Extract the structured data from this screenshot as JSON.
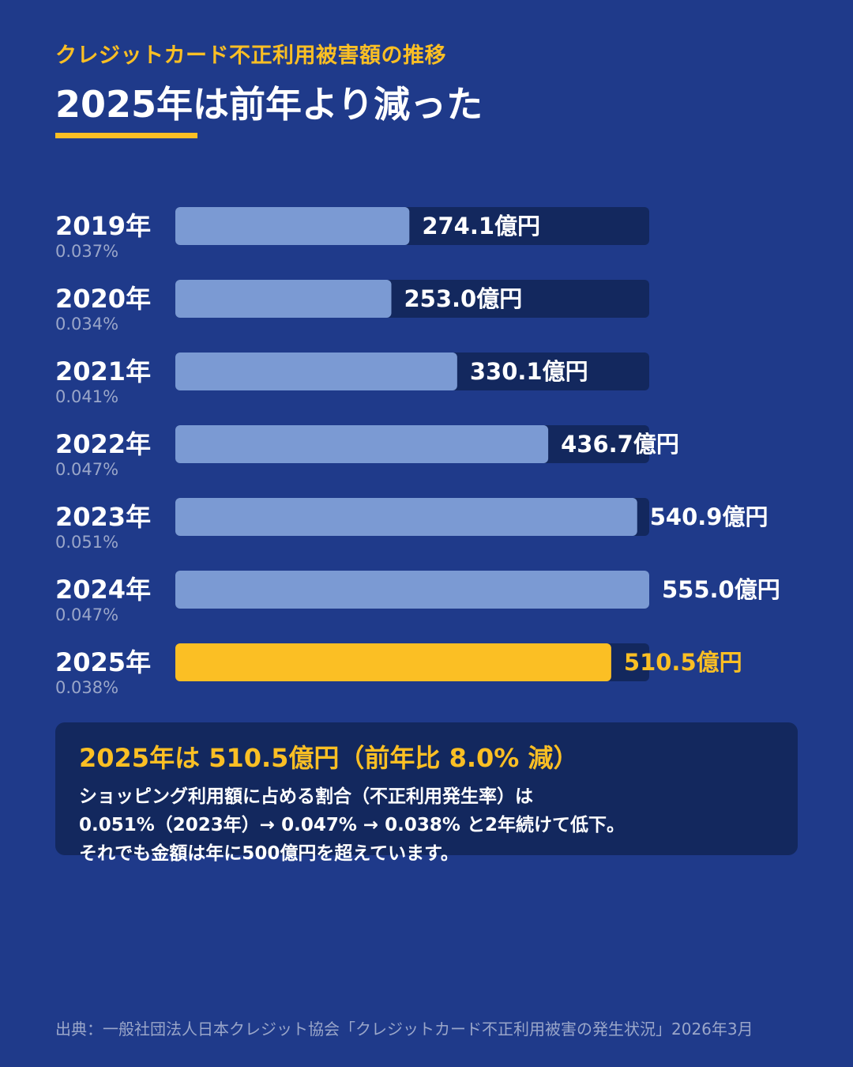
{
  "header": {
    "kicker": "クレジットカード不正利用被害額の推移",
    "title": "2025年は前年より減った"
  },
  "colors": {
    "background": "#1f3a8a",
    "track": "#13285e",
    "bar": "#7b9ad3",
    "highlight": "#fbbf24",
    "text": "#ffffff",
    "muted": "#9aa6c9"
  },
  "chart_data": {
    "type": "bar",
    "orientation": "horizontal",
    "categories": [
      "2019年",
      "2020年",
      "2021年",
      "2022年",
      "2023年",
      "2024年",
      "2025年"
    ],
    "values": [
      274.1,
      253.0,
      330.1,
      436.7,
      540.9,
      555.0,
      510.5
    ],
    "value_labels": [
      "274.1億円",
      "253.0億円",
      "330.1億円",
      "436.7億円",
      "540.9億円",
      "555.0億円",
      "510.5億円"
    ],
    "rates": [
      "0.037%",
      "0.034%",
      "0.041%",
      "0.047%",
      "0.051%",
      "0.047%",
      "0.038%"
    ],
    "unit": "億円",
    "xlim": [
      0,
      555.0
    ],
    "highlight_category": "2025年",
    "grid": false,
    "legend": "none"
  },
  "callout": {
    "headline": "2025年は 510.5億円（前年比 8.0% 減）",
    "lines": [
      "ショッピング利用額に占める割合（不正利用発生率）は",
      "0.051%（2023年）→ 0.047% → 0.038% と2年続けて低下。",
      "それでも金額は年に500億円を超えています。"
    ]
  },
  "source": "出典：一般社団法人日本クレジット協会「クレジットカード不正利用被害の発生状況」2026年3月"
}
